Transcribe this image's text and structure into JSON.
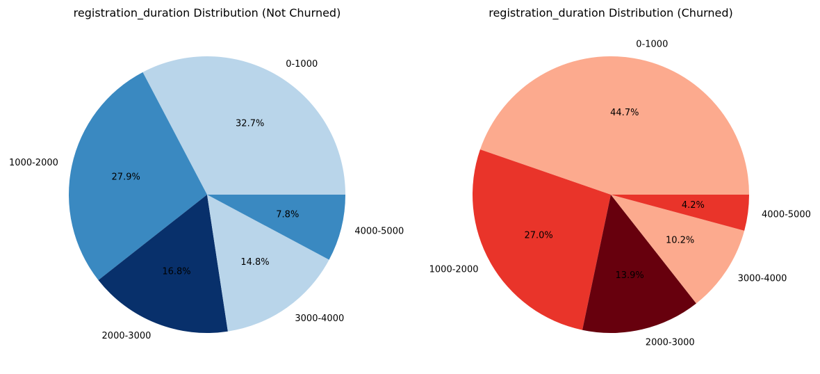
{
  "chart_data": [
    {
      "type": "pie",
      "title": "registration_duration Distribution (Not Churned)",
      "start_angle_deg": 0,
      "direction": "counterclockwise",
      "slices": [
        {
          "label": "0-1000",
          "value": 32.7,
          "pct_text": "32.7%",
          "color": "#b9d5ea"
        },
        {
          "label": "1000-2000",
          "value": 27.9,
          "pct_text": "27.9%",
          "color": "#3a89c1"
        },
        {
          "label": "2000-3000",
          "value": 16.8,
          "pct_text": "16.8%",
          "color": "#08306b"
        },
        {
          "label": "3000-4000",
          "value": 14.8,
          "pct_text": "14.8%",
          "color": "#b9d5ea"
        },
        {
          "label": "4000-5000",
          "value": 7.8,
          "pct_text": "7.8%",
          "color": "#3a89c1"
        }
      ]
    },
    {
      "type": "pie",
      "title": "registration_duration Distribution (Churned)",
      "start_angle_deg": 0,
      "direction": "counterclockwise",
      "slices": [
        {
          "label": "0-1000",
          "value": 44.7,
          "pct_text": "44.7%",
          "color": "#fcaa8e"
        },
        {
          "label": "1000-2000",
          "value": 27.0,
          "pct_text": "27.0%",
          "color": "#e9342a"
        },
        {
          "label": "2000-3000",
          "value": 13.9,
          "pct_text": "13.9%",
          "color": "#67000d"
        },
        {
          "label": "3000-4000",
          "value": 10.2,
          "pct_text": "10.2%",
          "color": "#fcaa8e"
        },
        {
          "label": "4000-5000",
          "value": 4.2,
          "pct_text": "4.2%",
          "color": "#e9342a"
        }
      ]
    }
  ]
}
